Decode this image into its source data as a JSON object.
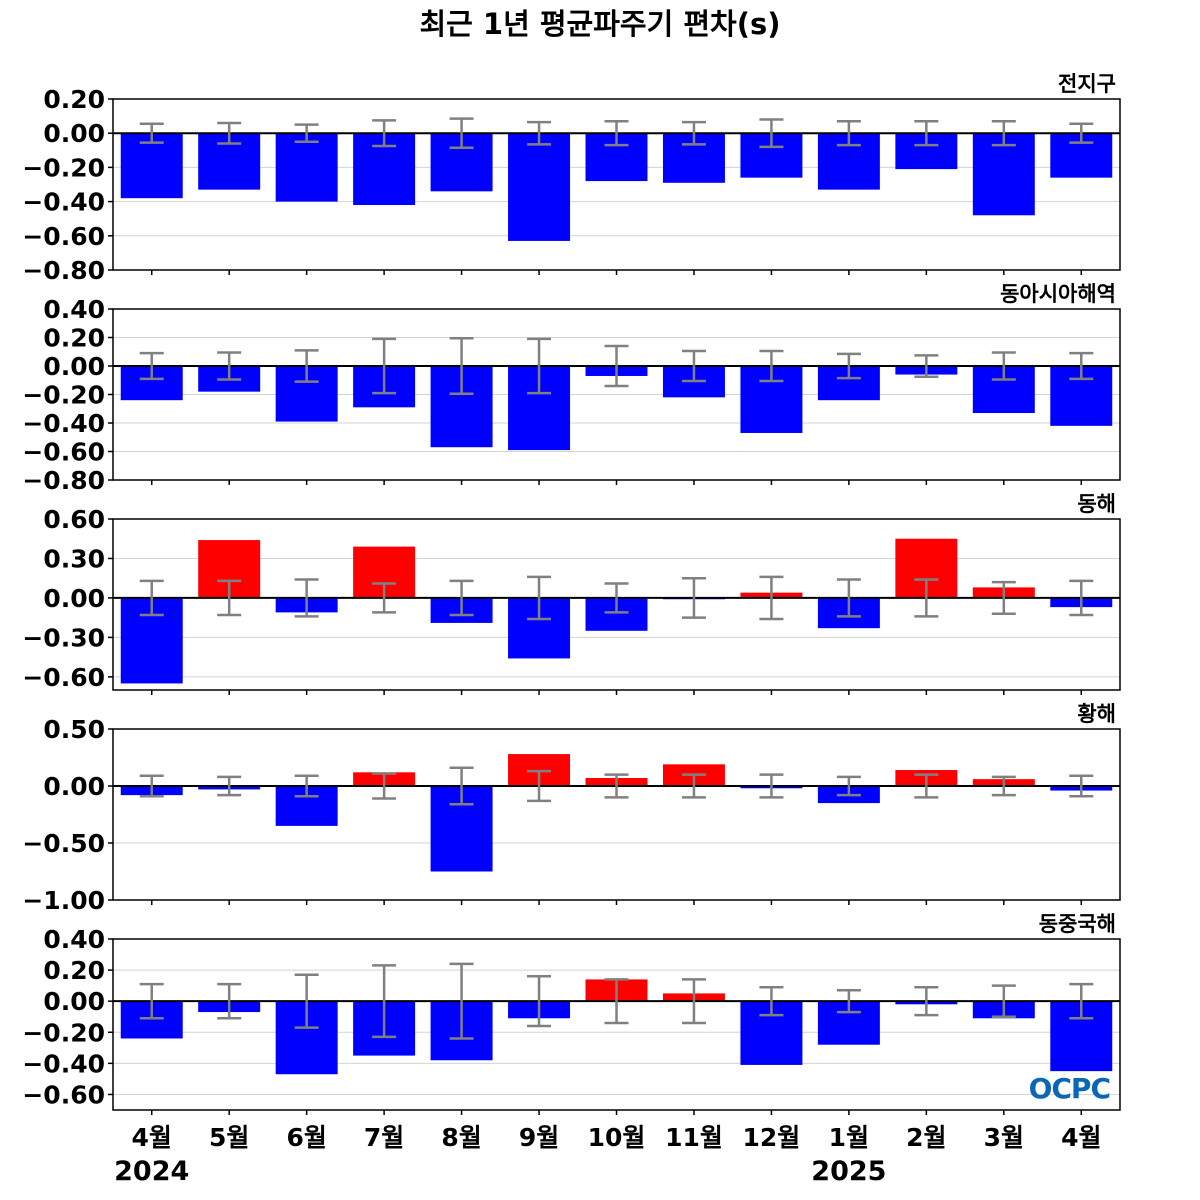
{
  "title": "최근 1년 평균파주기 편차(s)",
  "logo": "OCPC",
  "colors": {
    "positive": "#ff0000",
    "negative": "#0000ff",
    "error_bar": "#808080",
    "grid": "#d3d3d3",
    "zero_line": "#000000",
    "logo": "#0a67b8"
  },
  "months": [
    "4월",
    "5월",
    "6월",
    "7월",
    "8월",
    "9월",
    "10월",
    "11월",
    "12월",
    "1월",
    "2월",
    "3월",
    "4월"
  ],
  "years": [
    {
      "label": "2024",
      "at_index": 0
    },
    {
      "label": "2025",
      "at_index": 9
    }
  ],
  "chart_data": [
    {
      "type": "bar",
      "region": "전지구",
      "ylim": [
        -0.8,
        0.2
      ],
      "yticks": [
        0.2,
        0.0,
        -0.2,
        -0.4,
        -0.6,
        -0.8
      ],
      "tick_decimals": 2,
      "grid": true,
      "values": [
        -0.38,
        -0.33,
        -0.4,
        -0.42,
        -0.34,
        -0.63,
        -0.28,
        -0.29,
        -0.26,
        -0.33,
        -0.21,
        -0.48,
        -0.26
      ],
      "errors": [
        0.055,
        0.06,
        0.05,
        0.075,
        0.085,
        0.065,
        0.07,
        0.065,
        0.08,
        0.07,
        0.07,
        0.07,
        0.055
      ]
    },
    {
      "type": "bar",
      "region": "동아시아해역",
      "ylim": [
        -0.8,
        0.4
      ],
      "yticks": [
        0.4,
        0.2,
        0.0,
        -0.2,
        -0.4,
        -0.6,
        -0.8
      ],
      "tick_decimals": 2,
      "grid": true,
      "values": [
        -0.24,
        -0.18,
        -0.39,
        -0.29,
        -0.57,
        -0.59,
        -0.07,
        -0.22,
        -0.47,
        -0.24,
        -0.06,
        -0.33,
        -0.42
      ],
      "errors": [
        0.09,
        0.095,
        0.11,
        0.19,
        0.195,
        0.19,
        0.14,
        0.105,
        0.105,
        0.085,
        0.075,
        0.095,
        0.09
      ]
    },
    {
      "type": "bar",
      "region": "동해",
      "ylim": [
        -0.7,
        0.6
      ],
      "yticks": [
        0.6,
        0.3,
        0.0,
        -0.3,
        -0.6
      ],
      "tick_decimals": 2,
      "grid": true,
      "values": [
        -0.65,
        0.44,
        -0.11,
        0.39,
        -0.19,
        -0.46,
        -0.25,
        -0.01,
        0.04,
        -0.23,
        0.45,
        0.08,
        -0.07
      ],
      "errors": [
        0.13,
        0.13,
        0.14,
        0.11,
        0.13,
        0.16,
        0.11,
        0.15,
        0.16,
        0.14,
        0.14,
        0.12,
        0.13
      ]
    },
    {
      "type": "bar",
      "region": "황해",
      "ylim": [
        -1.0,
        0.5
      ],
      "yticks": [
        0.5,
        0.0,
        -0.5,
        -1.0
      ],
      "tick_decimals": 2,
      "grid": true,
      "values": [
        -0.08,
        -0.03,
        -0.35,
        0.12,
        -0.75,
        0.28,
        0.07,
        0.19,
        -0.02,
        -0.15,
        0.14,
        0.06,
        -0.04
      ],
      "errors": [
        0.09,
        0.08,
        0.09,
        0.11,
        0.16,
        0.13,
        0.1,
        0.1,
        0.1,
        0.08,
        0.1,
        0.08,
        0.09
      ]
    },
    {
      "type": "bar",
      "region": "동중국해",
      "ylim": [
        -0.7,
        0.4
      ],
      "yticks": [
        0.4,
        0.2,
        0.0,
        -0.2,
        -0.4,
        -0.6
      ],
      "tick_decimals": 2,
      "grid": true,
      "values": [
        -0.24,
        -0.07,
        -0.47,
        -0.35,
        -0.38,
        -0.11,
        0.14,
        0.05,
        -0.41,
        -0.28,
        -0.02,
        -0.11,
        -0.45
      ],
      "errors": [
        0.11,
        0.11,
        0.17,
        0.23,
        0.24,
        0.16,
        0.14,
        0.14,
        0.09,
        0.07,
        0.09,
        0.1,
        0.11
      ]
    }
  ]
}
